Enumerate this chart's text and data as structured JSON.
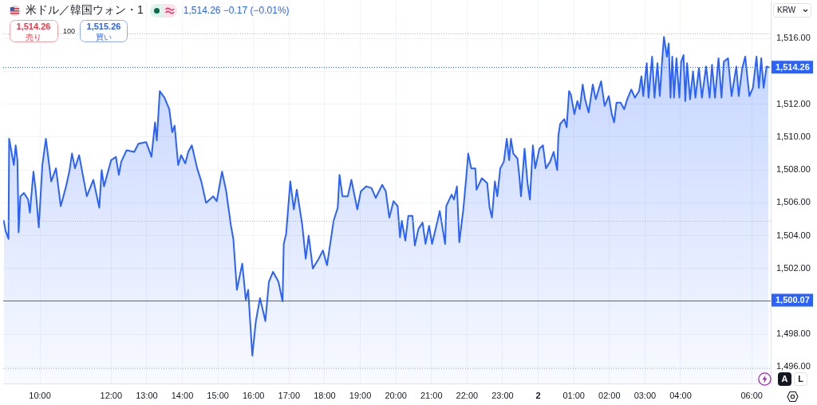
{
  "chart_data": {
    "type": "area",
    "title": "米ドル／韓国ウォン・1",
    "subtitle": "1,514.26 −0.17 (−0.01%)",
    "ylabel": "KRW",
    "annotations": [
      "1,514.26",
      "売り",
      "100",
      "1,515.26",
      "買い",
      "A",
      "L"
    ],
    "color": "#2962ff",
    "marker": "none",
    "grid": true,
    "xlim": [
      "--01-01T08:58",
      "--01-02T06:32"
    ],
    "xticks": [
      {
        "value": "--01-01T10:00",
        "label": "10:00"
      },
      {
        "value": "--01-01T12:00",
        "label": "12:00"
      },
      {
        "value": "--01-01T13:00",
        "label": "13:00"
      },
      {
        "value": "--01-01T14:00",
        "label": "14:00"
      },
      {
        "value": "--01-01T15:00",
        "label": "15:00"
      },
      {
        "value": "--01-01T16:00",
        "label": "16:00"
      },
      {
        "value": "--01-01T17:00",
        "label": "17:00"
      },
      {
        "value": "--01-01T18:00",
        "label": "18:00"
      },
      {
        "value": "--01-01T19:00",
        "label": "19:00"
      },
      {
        "value": "--01-01T20:00",
        "label": "20:00"
      },
      {
        "value": "--01-01T21:00",
        "label": "21:00"
      },
      {
        "value": "--01-01T22:00",
        "label": "22:00"
      },
      {
        "value": "--01-01T23:00",
        "label": "23:00"
      },
      {
        "value": "--01-02",
        "label": "2"
      },
      {
        "value": "--01-02T01:00",
        "label": "01:00"
      },
      {
        "value": "--01-02T02:00",
        "label": "02:00"
      },
      {
        "value": "--01-02T03:00",
        "label": "03:00"
      },
      {
        "value": "--01-02T04:00",
        "label": "04:00"
      },
      {
        "value": "--01-02T06:00",
        "label": "06:00"
      }
    ],
    "ylim": [
      1495,
      1518.3
    ],
    "yticks": [
      {
        "value": 1496,
        "label": "1,496.00"
      },
      {
        "value": 1498,
        "label": "1,498.00"
      },
      {
        "value": 1500,
        "label": null
      },
      {
        "value": 1502,
        "label": "1,502.00"
      },
      {
        "value": 1504,
        "label": "1,504.00"
      },
      {
        "value": 1506,
        "label": "1,506.00"
      },
      {
        "value": 1508,
        "label": "1,508.00"
      },
      {
        "value": 1510,
        "label": "1,510.00"
      },
      {
        "value": 1512,
        "label": "1,512.00"
      },
      {
        "value": 1514,
        "label": null
      },
      {
        "value": 1516,
        "label": "1,516.00"
      }
    ],
    "ref_lines": [
      {
        "axis": "y",
        "value": 1516.3,
        "color": "#b2b5be",
        "line_style": "dotted"
      },
      {
        "axis": "y",
        "value": 1504.9,
        "color": "#b2b5be",
        "line_style": "dotted"
      },
      {
        "axis": "y",
        "value": 1495.9,
        "color": "#b2b5be",
        "line_style": "dotted"
      },
      {
        "axis": "y",
        "value": 1514.26,
        "label": "1,514.26",
        "color": "#2962ff",
        "line_style": "dotted"
      },
      {
        "axis": "y",
        "value": 1500.07,
        "label": "1,500.07",
        "color": "#2962ff",
        "line_style": "solid"
      }
    ],
    "x": [
      "--01-01T08:59",
      "--01-01T09:02",
      "--01-01T09:07",
      "--01-01T09:08",
      "--01-01T09:16",
      "--01-01T09:19",
      "--01-01T09:22",
      "--01-01T09:24",
      "--01-01T09:27",
      "--01-01T09:33",
      "--01-01T09:40",
      "--01-01T09:43",
      "--01-01T09:49",
      "--01-01T09:53",
      "--01-01T09:58",
      "--01-01T10:04",
      "--01-01T10:10",
      "--01-01T10:19",
      "--01-01T10:27",
      "--01-01T10:35",
      "--01-01T10:44",
      "--01-01T10:50",
      "--01-01T10:54",
      "--01-01T10:59",
      "--01-01T11:06",
      "--01-01T11:19",
      "--01-01T11:30",
      "--01-01T11:40",
      "--01-01T11:44",
      "--01-01T11:48",
      "--01-01T12:00",
      "--01-01T12:08",
      "--01-01T12:13",
      "--01-01T12:17",
      "--01-01T12:26",
      "--01-01T12:39",
      "--01-01T12:46",
      "--01-01T12:59",
      "--01-01T13:08",
      "--01-01T13:14",
      "--01-01T13:17",
      "--01-01T13:22",
      "--01-01T13:30",
      "--01-01T13:38",
      "--01-01T13:43",
      "--01-01T13:47",
      "--01-01T13:53",
      "--01-01T13:58",
      "--01-01T14:05",
      "--01-01T14:10",
      "--01-01T14:16",
      "--01-01T14:25",
      "--01-01T14:32",
      "--01-01T14:40",
      "--01-01T14:52",
      "--01-01T14:58",
      "--01-01T15:07",
      "--01-01T15:14",
      "--01-01T15:17",
      "--01-01T15:22",
      "--01-01T15:26",
      "--01-01T15:32",
      "--01-01T15:41",
      "--01-01T15:47",
      "--01-01T15:51",
      "--01-01T15:58",
      "--01-01T16:04",
      "--01-01T16:11",
      "--01-01T16:20",
      "--01-01T16:26",
      "--01-01T16:33",
      "--01-01T16:42",
      "--01-01T16:49",
      "--01-01T16:51",
      "--01-01T16:55",
      "--01-01T17:02",
      "--01-01T17:08",
      "--01-01T17:13",
      "--01-01T17:22",
      "--01-01T17:28",
      "--01-01T17:33",
      "--01-01T17:40",
      "--01-01T17:50",
      "--01-01T17:57",
      "--01-01T18:04",
      "--01-01T18:15",
      "--01-01T18:22",
      "--01-01T18:25",
      "--01-01T18:30",
      "--01-01T18:39",
      "--01-01T18:45",
      "--01-01T18:55",
      "--01-01T19:01",
      "--01-01T19:10",
      "--01-01T19:19",
      "--01-01T19:26",
      "--01-01T19:37",
      "--01-01T19:43",
      "--01-01T19:49",
      "--01-01T19:56",
      "--01-01T20:03",
      "--01-01T20:07",
      "--01-01T20:10",
      "--01-01T20:16",
      "--01-01T20:21",
      "--01-01T20:28",
      "--01-01T20:32",
      "--01-01T20:38",
      "--01-01T20:45",
      "--01-01T20:50",
      "--01-01T20:56",
      "--01-01T21:01",
      "--01-01T21:07",
      "--01-01T21:14",
      "--01-01T21:23",
      "--01-01T21:25",
      "--01-01T21:34",
      "--01-01T21:38",
      "--01-01T21:43",
      "--01-01T21:47",
      "--01-01T21:54",
      "--01-01T21:59",
      "--01-01T22:02",
      "--01-01T22:07",
      "--01-01T22:14",
      "--01-01T22:16",
      "--01-01T22:25",
      "--01-01T22:34",
      "--01-01T22:38",
      "--01-01T22:42",
      "--01-01T22:47",
      "--01-01T22:51",
      "--01-01T22:56",
      "--01-01T23:02",
      "--01-01T23:07",
      "--01-01T23:11",
      "--01-01T23:14",
      "--01-01T23:18",
      "--01-01T23:25",
      "--01-01T23:28",
      "--01-01T23:31",
      "--01-01T23:37",
      "--01-01T23:42",
      "--01-01T23:46",
      "--01-01T23:51",
      "--01-01T23:55",
      "--01-02T00:02",
      "--01-02T00:08",
      "--01-02T00:13",
      "--01-02T00:20",
      "--01-02T00:26",
      "--01-02T00:32",
      "--01-02T00:34",
      "--01-02T00:37",
      "--01-02T00:44",
      "--01-02T00:48",
      "--01-02T00:52",
      "--01-02T00:55",
      "--01-02T01:01",
      "--01-02T01:06",
      "--01-02T01:10",
      "--01-02T01:15",
      "--01-02T01:19",
      "--01-02T01:25",
      "--01-02T01:32",
      "--01-02T01:37",
      "--01-02T01:46",
      "--01-02T01:52",
      "--01-02T01:59",
      "--01-02T02:04",
      "--01-02T02:08",
      "--01-02T02:12",
      "--01-02T02:19",
      "--01-02T02:25",
      "--01-02T02:30",
      "--01-02T02:37",
      "--01-02T02:43",
      "--01-02T02:50",
      "--01-02T02:54",
      "--01-02T02:57",
      "--01-02T03:03",
      "--01-02T03:06",
      "--01-02T03:12",
      "--01-02T03:16",
      "--01-02T03:21",
      "--01-02T03:25",
      "--01-02T03:29",
      "--01-02T03:32",
      "--01-02T03:37",
      "--01-02T03:40",
      "--01-02T03:43",
      "--01-02T03:46",
      "--01-02T03:49",
      "--01-02T03:53",
      "--01-02T03:58",
      "--01-02T04:01",
      "--01-02T04:05",
      "--01-02T04:08",
      "--01-02T04:11",
      "--01-02T04:16",
      "--01-02T04:21",
      "--01-02T04:25",
      "--01-02T04:31",
      "--01-02T04:36",
      "--01-02T04:43",
      "--01-02T04:49",
      "--01-02T04:53",
      "--01-02T04:58",
      "--01-02T05:04",
      "--01-02T05:09",
      "--01-02T05:13",
      "--01-02T05:20",
      "--01-02T05:26",
      "--01-02T05:34",
      "--01-02T05:38",
      "--01-02T05:44",
      "--01-02T05:49",
      "--01-02T05:56",
      "--01-02T06:02",
      "--01-02T06:08",
      "--01-02T06:12",
      "--01-02T06:16",
      "--01-02T06:20",
      "--01-02T06:25",
      "--01-02T06:28"
    ],
    "values": [
      1504.9,
      1504.3,
      1503.8,
      1509.9,
      1508.3,
      1509.5,
      1508.6,
      1504.2,
      1506.4,
      1506.6,
      1506.2,
      1505.4,
      1507.9,
      1506.7,
      1504.5,
      1508.3,
      1509.9,
      1507.3,
      1508.1,
      1505.8,
      1507.0,
      1508.0,
      1509.0,
      1508.1,
      1508.9,
      1506.4,
      1507.4,
      1505.7,
      1508.0,
      1507.0,
      1508.6,
      1508.8,
      1507.7,
      1508.5,
      1509.2,
      1509.1,
      1509.6,
      1509.7,
      1508.8,
      1510.9,
      1509.8,
      1512.8,
      1512.4,
      1511.7,
      1510.3,
      1510.7,
      1508.3,
      1508.9,
      1508.4,
      1509.1,
      1509.5,
      1508.1,
      1507.3,
      1506.0,
      1506.4,
      1506.1,
      1507.9,
      1506.7,
      1505.9,
      1504.6,
      1503.8,
      1500.7,
      1502.3,
      1500.1,
      1500.7,
      1496.7,
      1498.8,
      1500.2,
      1498.8,
      1501.2,
      1501.8,
      1501.2,
      1500.0,
      1503.5,
      1504.1,
      1507.3,
      1505.6,
      1506.8,
      1504.7,
      1502.6,
      1504.0,
      1502.0,
      1502.6,
      1503.1,
      1502.2,
      1504.9,
      1505.7,
      1507.7,
      1506.4,
      1506.4,
      1507.4,
      1505.6,
      1506.7,
      1507.0,
      1506.9,
      1506.3,
      1507.1,
      1506.7,
      1505.1,
      1506.1,
      1505.8,
      1503.9,
      1504.9,
      1503.7,
      1505.2,
      1505.2,
      1503.4,
      1504.4,
      1504.8,
      1503.5,
      1504.6,
      1503.5,
      1504.4,
      1505.5,
      1503.5,
      1505.8,
      1506.5,
      1506.2,
      1507.0,
      1503.6,
      1505.7,
      1507.7,
      1509.0,
      1508.1,
      1508.1,
      1506.8,
      1507.5,
      1507.2,
      1505.7,
      1505.1,
      1507.3,
      1506.4,
      1508.1,
      1508.5,
      1509.9,
      1508.6,
      1509.9,
      1509.0,
      1508.7,
      1507.7,
      1506.4,
      1509.3,
      1507.2,
      1506.2,
      1509.5,
      1508.1,
      1509.3,
      1509.5,
      1508.1,
      1508.5,
      1509.1,
      1508.0,
      1510.1,
      1510.8,
      1511.1,
      1510.6,
      1512.8,
      1512.6,
      1511.4,
      1512.2,
      1511.7,
      1513.2,
      1512.3,
      1511.5,
      1513.2,
      1512.3,
      1513.4,
      1511.9,
      1512.5,
      1511.4,
      1510.9,
      1512.1,
      1512.1,
      1511.7,
      1512.3,
      1512.9,
      1512.4,
      1512.8,
      1513.7,
      1512.5,
      1514.5,
      1512.4,
      1514.9,
      1512.4,
      1514.5,
      1512.5,
      1514.7,
      1516.1,
      1514.9,
      1515.7,
      1512.4,
      1514.9,
      1512.4,
      1514.8,
      1512.4,
      1514.6,
      1515.0,
      1512.2,
      1514.5,
      1512.3,
      1514.0,
      1512.4,
      1514.2,
      1512.4,
      1514.3,
      1512.4,
      1514.4,
      1512.4,
      1514.8,
      1512.4,
      1514.6,
      1514.8,
      1512.5,
      1514.3,
      1512.5,
      1514.2,
      1514.9,
      1512.5,
      1513.0,
      1514.9,
      1513.0,
      1514.8,
      1513.0,
      1514.3,
      1514.26
    ]
  }
}
